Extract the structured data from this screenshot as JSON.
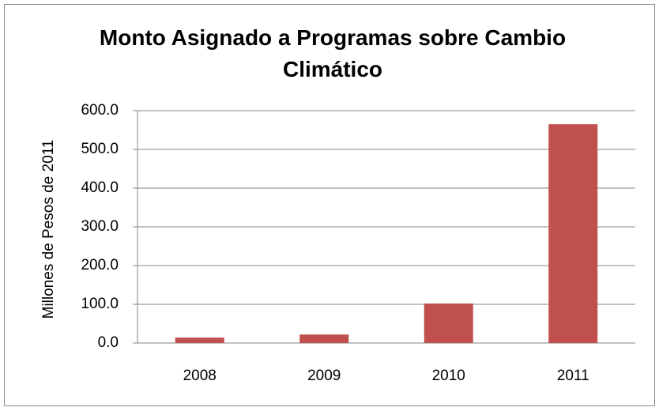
{
  "chart_data": {
    "type": "bar",
    "title": "Monto Asignado a Programas sobre Cambio Climático",
    "y_label": "Millones de Pesos de 2011",
    "categories": [
      "2008",
      "2009",
      "2010",
      "2011"
    ],
    "values": [
      14,
      22,
      102,
      565
    ],
    "color": "#c0504d",
    "ylim": [
      0,
      600
    ],
    "yticks": [
      {
        "value": 0,
        "label": "0.0"
      },
      {
        "value": 100,
        "label": "100.0"
      },
      {
        "value": 200,
        "label": "200.0"
      },
      {
        "value": 300,
        "label": "300.0"
      },
      {
        "value": 400,
        "label": "400.0"
      },
      {
        "value": 500,
        "label": "500.0"
      },
      {
        "value": 600,
        "label": "600.0"
      }
    ],
    "grid": true
  }
}
